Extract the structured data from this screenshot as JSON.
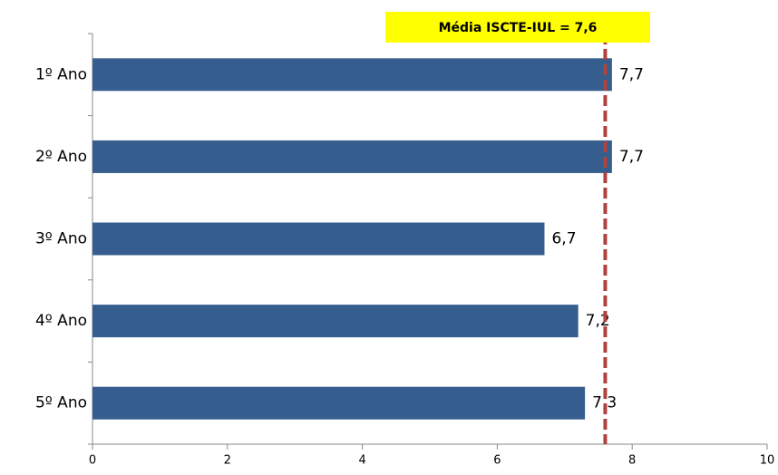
{
  "chart_data": {
    "type": "bar",
    "orientation": "horizontal",
    "categories": [
      "1º Ano",
      "2º Ano",
      "3º Ano",
      "4º Ano",
      "5º Ano"
    ],
    "values": [
      7.7,
      7.7,
      6.7,
      7.2,
      7.3
    ],
    "value_labels": [
      "7,7",
      "7,7",
      "6,7",
      "7,2",
      "7,3"
    ],
    "color": "#355e8f",
    "xlim": [
      0,
      10
    ],
    "xticks": [
      0,
      2,
      4,
      6,
      8,
      10
    ],
    "reference_line": {
      "value": 7.6,
      "label": "Média ISCTE-IUL = 7,6",
      "color": "#b0413e",
      "box_color": "#ffff00"
    }
  }
}
